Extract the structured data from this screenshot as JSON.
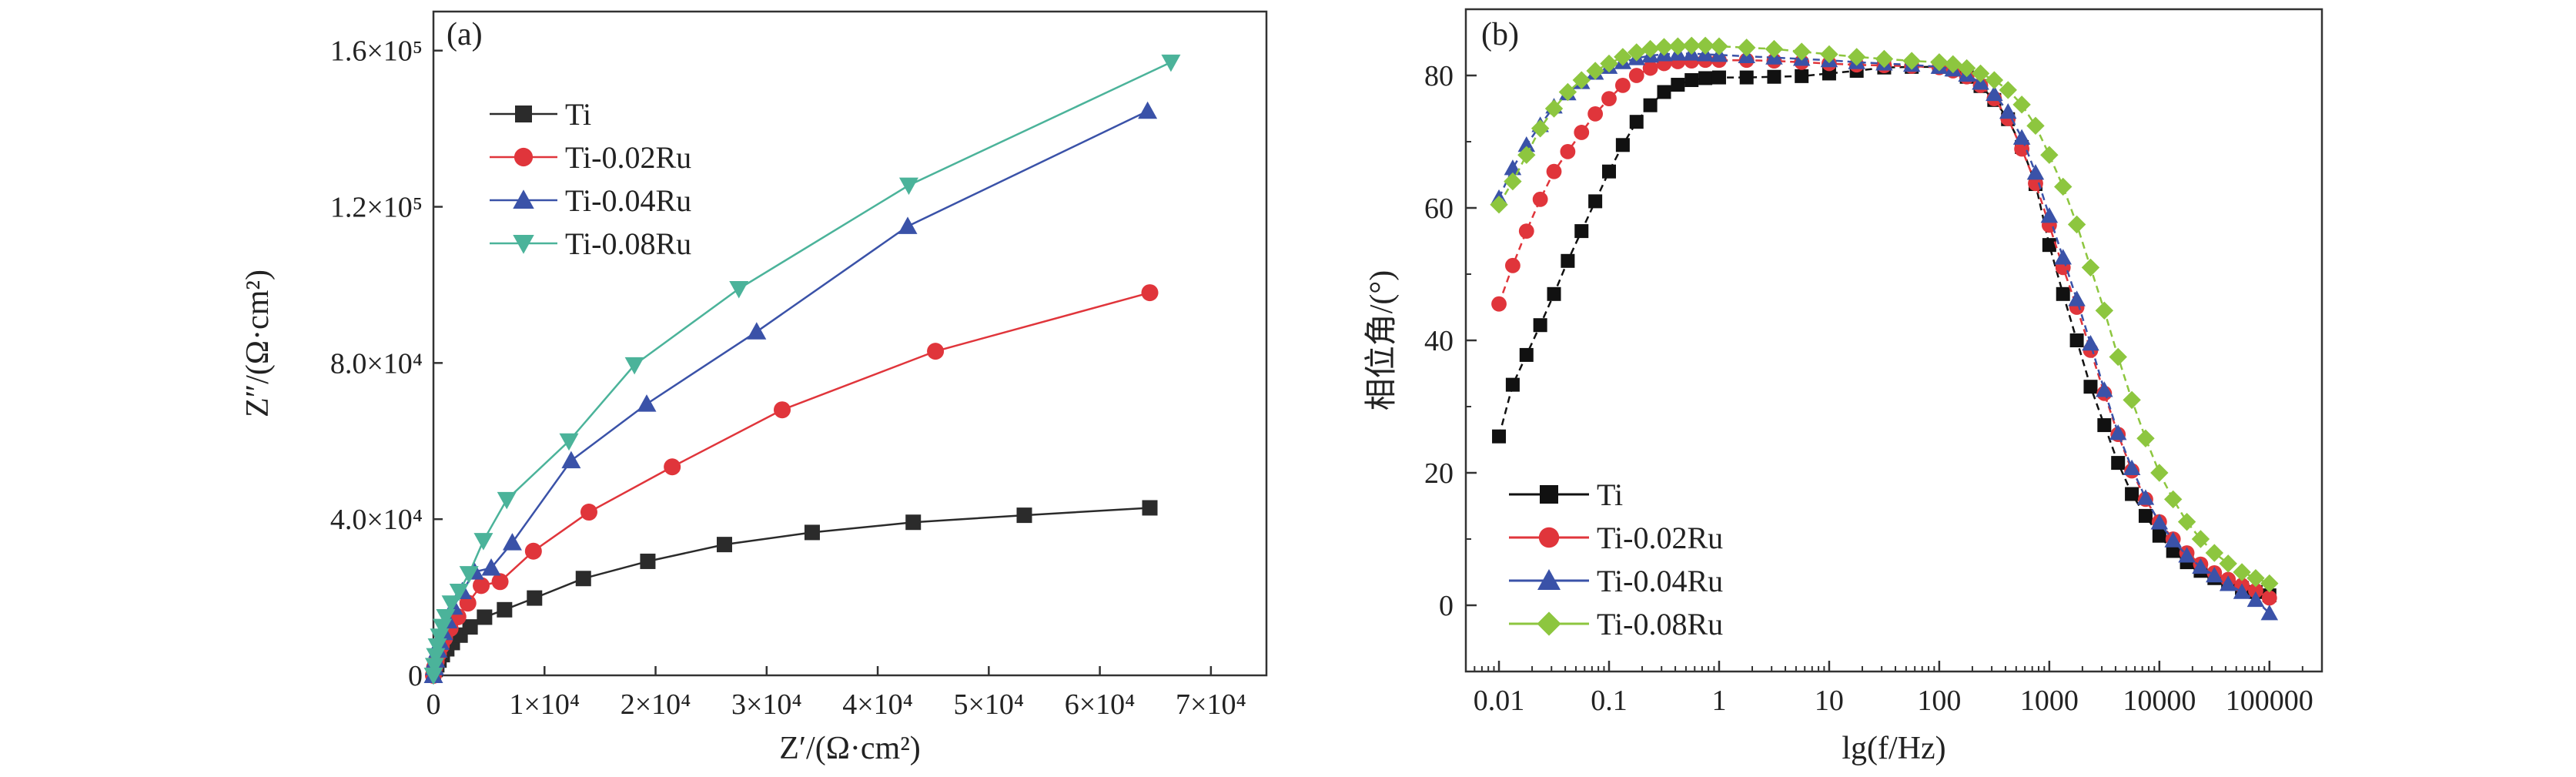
{
  "chart_data": [
    {
      "type": "line",
      "panel_label": "(a)",
      "xlabel": "Z′/(Ω·cm²)",
      "ylabel": "Z″/(Ω·cm²)",
      "xlim": [
        0,
        75000
      ],
      "ylim": [
        0,
        170000
      ],
      "x_ticks": [
        {
          "v": 0,
          "t": "0"
        },
        {
          "v": 10000,
          "t": "1×10⁴"
        },
        {
          "v": 20000,
          "t": "2×10⁴"
        },
        {
          "v": 30000,
          "t": "3×10⁴"
        },
        {
          "v": 40000,
          "t": "4×10⁴"
        },
        {
          "v": 50000,
          "t": "5×10⁴"
        },
        {
          "v": 60000,
          "t": "6×10⁴"
        },
        {
          "v": 70000,
          "t": "7×10⁴"
        }
      ],
      "y_ticks": [
        {
          "v": 0,
          "t": "0"
        },
        {
          "v": 40000,
          "t": "4.0×10⁴"
        },
        {
          "v": 80000,
          "t": "8.0×10⁴"
        },
        {
          "v": 120000,
          "t": "1.2×10⁵"
        },
        {
          "v": 160000,
          "t": "1.6×10⁵"
        }
      ],
      "legend_position": "upper-left",
      "series": [
        {
          "name": "Ti",
          "color": "#2b2b2b",
          "marker": "square",
          "x": [
            0,
            150,
            300,
            500,
            800,
            1200,
            1700,
            2400,
            3300,
            4600,
            6400,
            9100,
            13500,
            19300,
            26200,
            34100,
            43200,
            53200,
            64500
          ],
          "y": [
            0,
            1500,
            2700,
            3900,
            5300,
            6800,
            8400,
            10300,
            12400,
            14900,
            16800,
            19800,
            24800,
            29200,
            33500,
            36600,
            39200,
            41000,
            42900
          ]
        },
        {
          "name": "Ti-0.02Ru",
          "color": "#e0353b",
          "marker": "circle",
          "x": [
            0,
            100,
            250,
            450,
            700,
            1000,
            1500,
            2200,
            3100,
            4300,
            6000,
            9000,
            14000,
            21500,
            31400,
            45200,
            64500
          ],
          "y": [
            0,
            2000,
            3500,
            5500,
            7500,
            9500,
            12000,
            15000,
            18500,
            23000,
            24000,
            31800,
            41800,
            53400,
            68000,
            83000,
            98000
          ]
        },
        {
          "name": "Ti-0.04Ru",
          "color": "#3a52a8",
          "marker": "triangle-up",
          "x": [
            0,
            100,
            200,
            400,
            600,
            900,
            1300,
            1800,
            2600,
            3700,
            5200,
            7100,
            12400,
            19200,
            29100,
            42700,
            64300
          ],
          "y": [
            0,
            2000,
            4000,
            6500,
            8500,
            11000,
            14000,
            17500,
            21500,
            26500,
            27500,
            34000,
            55000,
            69500,
            88000,
            115000,
            144500
          ]
        },
        {
          "name": "Ti-0.08Ru",
          "color": "#4bb39a",
          "marker": "triangle-down",
          "x": [
            0,
            100,
            200,
            350,
            550,
            800,
            1100,
            1600,
            2300,
            3200,
            4500,
            6600,
            12200,
            18100,
            27500,
            42800,
            66400
          ],
          "y": [
            0,
            2500,
            5000,
            7500,
            10000,
            12500,
            15000,
            18500,
            21500,
            26000,
            34500,
            45000,
            60000,
            79500,
            99000,
            125500,
            157000
          ]
        }
      ]
    },
    {
      "type": "line",
      "panel_label": "(b)",
      "xlabel": "lg(f/Hz)",
      "ylabel": "相位角/(°)",
      "x_scale": "log",
      "xlim": [
        0.005,
        300000
      ],
      "ylim": [
        -10,
        90
      ],
      "x_ticks": [
        {
          "v": 0.01,
          "t": "0.01"
        },
        {
          "v": 0.1,
          "t": "0.1"
        },
        {
          "v": 1,
          "t": "1"
        },
        {
          "v": 10,
          "t": "10"
        },
        {
          "v": 100,
          "t": "100"
        },
        {
          "v": 1000,
          "t": "1000"
        },
        {
          "v": 10000,
          "t": "10000"
        },
        {
          "v": 100000,
          "t": "100000"
        }
      ],
      "y_ticks": [
        {
          "v": 0,
          "t": "0"
        },
        {
          "v": 20,
          "t": "20"
        },
        {
          "v": 40,
          "t": "40"
        },
        {
          "v": 60,
          "t": "60"
        },
        {
          "v": 80,
          "t": "80"
        }
      ],
      "legend_position": "lower-left",
      "series": [
        {
          "name": "Ti",
          "color": "#111111",
          "marker": "square",
          "lgx": [
            -2,
            -1.875,
            -1.75,
            -1.625,
            -1.5,
            -1.375,
            -1.25,
            -1.125,
            -1,
            -0.875,
            -0.75,
            -0.625,
            -0.5,
            -0.375,
            -0.25,
            -0.125,
            0,
            0.25,
            0.5,
            0.75,
            1,
            1.25,
            1.5,
            1.75,
            2,
            2.125,
            2.25,
            2.375,
            2.5,
            2.625,
            2.75,
            2.875,
            3,
            3.125,
            3.25,
            3.375,
            3.5,
            3.625,
            3.75,
            3.875,
            4,
            4.125,
            4.25,
            4.375,
            4.5,
            4.625,
            4.75,
            4.875,
            5
          ],
          "y": [
            25.5,
            33.3,
            37.8,
            42.3,
            47,
            52,
            56.5,
            61,
            65.5,
            69.5,
            73,
            75.5,
            77.5,
            78.6,
            79.3,
            79.6,
            79.7,
            79.7,
            79.8,
            79.9,
            80.3,
            80.7,
            81.2,
            81.3,
            81.3,
            80.9,
            79.8,
            78.4,
            76.3,
            73.4,
            69.2,
            63.6,
            54.4,
            47,
            40,
            33,
            27.2,
            21.5,
            16.8,
            13.5,
            10.5,
            8.2,
            6.5,
            5.2,
            4.1,
            3.3,
            2.6,
            2.0,
            1.5
          ]
        },
        {
          "name": "Ti-0.02Ru",
          "color": "#e0353b",
          "marker": "circle",
          "lgx": [
            -2,
            -1.875,
            -1.75,
            -1.625,
            -1.5,
            -1.375,
            -1.25,
            -1.125,
            -1,
            -0.875,
            -0.75,
            -0.625,
            -0.5,
            -0.375,
            -0.25,
            -0.125,
            0,
            0.25,
            0.5,
            0.75,
            1,
            1.25,
            1.5,
            1.75,
            2,
            2.125,
            2.25,
            2.375,
            2.5,
            2.625,
            2.75,
            2.875,
            3,
            3.125,
            3.25,
            3.375,
            3.5,
            3.625,
            3.75,
            3.875,
            4,
            4.125,
            4.25,
            4.375,
            4.5,
            4.625,
            4.75,
            4.875,
            5
          ],
          "y": [
            45.5,
            51.3,
            56.5,
            61.3,
            65.5,
            68.5,
            71.4,
            74.2,
            76.5,
            78.5,
            80,
            81.1,
            81.8,
            82.1,
            82.2,
            82.3,
            82.3,
            82.3,
            82.2,
            82,
            81.8,
            81.6,
            81.5,
            81.4,
            81.2,
            80.7,
            79.8,
            78.5,
            76.5,
            73.5,
            68.9,
            63.7,
            57.4,
            51,
            45,
            38.5,
            32,
            25.8,
            20.3,
            16,
            12.6,
            10,
            7.9,
            6.2,
            4.9,
            3.9,
            3.0,
            2.2,
            1.1
          ]
        },
        {
          "name": "Ti-0.04Ru",
          "color": "#3a52a8",
          "marker": "triangle-up",
          "lgx": [
            -2,
            -1.875,
            -1.75,
            -1.625,
            -1.5,
            -1.375,
            -1.25,
            -1.125,
            -1,
            -0.875,
            -0.75,
            -0.625,
            -0.5,
            -0.375,
            -0.25,
            -0.125,
            0,
            0.25,
            0.5,
            0.75,
            1,
            1.25,
            1.5,
            1.75,
            2,
            2.125,
            2.25,
            2.375,
            2.5,
            2.625,
            2.75,
            2.875,
            3,
            3.125,
            3.25,
            3.375,
            3.5,
            3.625,
            3.75,
            3.875,
            4,
            4.125,
            4.25,
            4.375,
            4.5,
            4.625,
            4.75,
            4.875,
            5
          ],
          "y": [
            61.5,
            66,
            69.5,
            72.5,
            75.3,
            77.3,
            79,
            80.4,
            81.3,
            82,
            82.6,
            83,
            83.2,
            83.3,
            83.3,
            83.2,
            83.1,
            82.9,
            82.7,
            82.5,
            82.3,
            82,
            81.8,
            81.6,
            81.3,
            80.9,
            80.1,
            78.9,
            77.2,
            74.5,
            70.6,
            65.3,
            58.8,
            52.5,
            46.2,
            39.5,
            32.5,
            26,
            20.7,
            16.2,
            12.5,
            9.8,
            7.5,
            5.8,
            4.5,
            3.2,
            2.0,
            0.8,
            -1.2
          ]
        },
        {
          "name": "Ti-0.08Ru",
          "color": "#8dc63f",
          "marker": "diamond",
          "lgx": [
            -2,
            -1.875,
            -1.75,
            -1.625,
            -1.5,
            -1.375,
            -1.25,
            -1.125,
            -1,
            -0.875,
            -0.75,
            -0.625,
            -0.5,
            -0.375,
            -0.25,
            -0.125,
            0,
            0.25,
            0.5,
            0.75,
            1,
            1.25,
            1.5,
            1.75,
            2,
            2.125,
            2.25,
            2.375,
            2.5,
            2.625,
            2.75,
            2.875,
            3,
            3.125,
            3.25,
            3.375,
            3.5,
            3.625,
            3.75,
            3.875,
            4,
            4.125,
            4.25,
            4.375,
            4.5,
            4.625,
            4.75,
            4.875,
            5
          ],
          "y": [
            60.5,
            64,
            68,
            72,
            75,
            77.5,
            79.3,
            80.7,
            81.8,
            82.8,
            83.5,
            84,
            84.3,
            84.4,
            84.5,
            84.5,
            84.4,
            84.2,
            84,
            83.6,
            83.2,
            82.8,
            82.5,
            82.2,
            82,
            81.7,
            81.1,
            80.3,
            79.3,
            77.8,
            75.6,
            72.4,
            68,
            63.2,
            57.5,
            51,
            44.5,
            37.5,
            31,
            25.2,
            20,
            16,
            12.6,
            10,
            7.9,
            6.3,
            5.0,
            4.1,
            3.3
          ]
        }
      ]
    }
  ]
}
